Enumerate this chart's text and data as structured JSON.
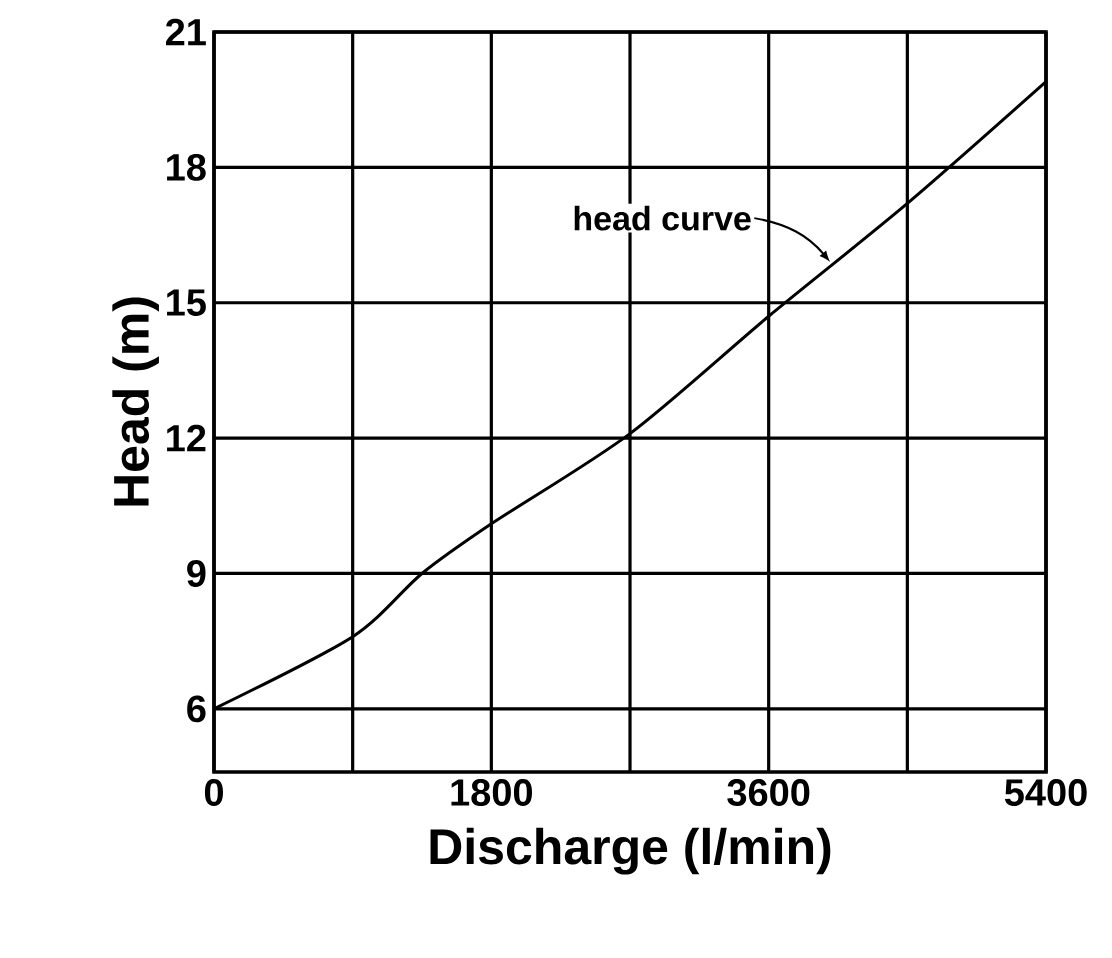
{
  "chart_data": {
    "type": "line",
    "xlabel": "Discharge (l/min)",
    "ylabel": "Head (m)",
    "x": [
      0,
      900,
      1350,
      1800,
      2700,
      3600,
      4500,
      5400
    ],
    "series": [
      {
        "color": "#000000",
        "values": [
          6.0,
          7.6,
          9.0,
          10.1,
          12.1,
          14.7,
          17.2,
          19.9
        ]
      }
    ],
    "xlim": [
      0,
      5400
    ],
    "ylim": [
      4.6,
      21
    ],
    "xticks": [
      0,
      {
        "value": 900,
        "label": null
      },
      1800,
      {
        "value": 2700,
        "label": null
      },
      3600,
      {
        "value": 4500,
        "label": null
      },
      5400
    ],
    "yticks": [
      6,
      9,
      12,
      15,
      18,
      21
    ],
    "grid": true,
    "marker": "none",
    "line_style": "solid",
    "annotations": [
      {
        "text": "head curve",
        "x": 4000,
        "y": 15.9
      }
    ]
  }
}
